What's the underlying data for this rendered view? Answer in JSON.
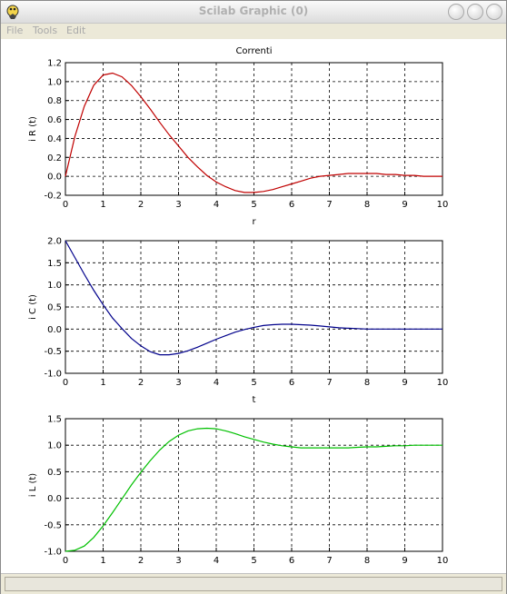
{
  "window": {
    "title": "Scilab Graphic (0)"
  },
  "menu": [
    "File",
    "Tools",
    "Edit"
  ],
  "chart_data": [
    {
      "type": "line",
      "title": "Correnti",
      "xlabel": "r",
      "ylabel": "i R (t)",
      "xlim": [
        0,
        10
      ],
      "ylim": [
        -0.2,
        1.2
      ],
      "xticks": [
        "0",
        "1",
        "2",
        "3",
        "4",
        "5",
        "6",
        "7",
        "8",
        "9",
        "10"
      ],
      "yticks": [
        "-0.2",
        "0.0",
        "0.2",
        "0.4",
        "0.6",
        "0.8",
        "1.0",
        "1.2"
      ],
      "grid": true,
      "color": "#c00000",
      "series": [
        {
          "x": [
            0,
            0.25,
            0.5,
            0.75,
            1,
            1.25,
            1.5,
            1.75,
            2,
            2.25,
            2.5,
            2.75,
            3,
            3.25,
            3.5,
            3.75,
            4,
            4.25,
            4.5,
            4.75,
            5,
            5.25,
            5.5,
            5.75,
            6,
            6.25,
            6.5,
            6.75,
            7,
            7.25,
            7.5,
            7.75,
            8,
            8.25,
            8.5,
            8.75,
            9,
            9.25,
            9.5,
            9.75,
            10
          ],
          "y": [
            0,
            0.42,
            0.74,
            0.96,
            1.07,
            1.09,
            1.05,
            0.96,
            0.84,
            0.71,
            0.57,
            0.44,
            0.32,
            0.2,
            0.1,
            0.01,
            -0.06,
            -0.11,
            -0.15,
            -0.17,
            -0.17,
            -0.16,
            -0.14,
            -0.11,
            -0.08,
            -0.05,
            -0.02,
            0,
            0.01,
            0.02,
            0.03,
            0.03,
            0.03,
            0.03,
            0.02,
            0.02,
            0.01,
            0.01,
            0,
            0,
            0
          ]
        }
      ]
    },
    {
      "type": "line",
      "title": "",
      "xlabel": "t",
      "ylabel": "i C (t)",
      "xlim": [
        0,
        10
      ],
      "ylim": [
        -1.0,
        2.0
      ],
      "xticks": [
        "0",
        "1",
        "2",
        "3",
        "4",
        "5",
        "6",
        "7",
        "8",
        "9",
        "10"
      ],
      "yticks": [
        "-1.0",
        "-0.5",
        "0.0",
        "0.5",
        "1.0",
        "1.5",
        "2.0"
      ],
      "grid": true,
      "color": "#00008b",
      "series": [
        {
          "x": [
            0,
            0.25,
            0.5,
            0.75,
            1,
            1.25,
            1.5,
            1.75,
            2,
            2.25,
            2.5,
            2.75,
            3,
            3.25,
            3.5,
            3.75,
            4,
            4.25,
            4.5,
            4.75,
            5,
            5.25,
            5.5,
            5.75,
            6,
            6.25,
            6.5,
            6.75,
            7,
            7.25,
            7.5,
            7.75,
            8,
            8.25,
            8.5,
            8.75,
            9,
            9.25,
            9.5,
            9.75,
            10
          ],
          "y": [
            2.0,
            1.62,
            1.24,
            0.88,
            0.55,
            0.25,
            0.01,
            -0.21,
            -0.38,
            -0.51,
            -0.58,
            -0.58,
            -0.55,
            -0.49,
            -0.41,
            -0.32,
            -0.23,
            -0.15,
            -0.07,
            -0.01,
            0.04,
            0.08,
            0.1,
            0.11,
            0.11,
            0.1,
            0.09,
            0.07,
            0.05,
            0.03,
            0.02,
            0.01,
            0,
            0,
            0,
            0,
            0,
            0,
            0,
            0,
            0
          ]
        }
      ]
    },
    {
      "type": "line",
      "title": "",
      "xlabel": "",
      "ylabel": "i L (t)",
      "xlim": [
        0,
        10
      ],
      "ylim": [
        -1.0,
        1.5
      ],
      "xticks": [
        "0",
        "1",
        "2",
        "3",
        "4",
        "5",
        "6",
        "7",
        "8",
        "9",
        "10"
      ],
      "yticks": [
        "-1.0",
        "-0.5",
        "0.0",
        "0.5",
        "1.0",
        "1.5"
      ],
      "grid": true,
      "color": "#00c000",
      "series": [
        {
          "x": [
            0,
            0.25,
            0.5,
            0.75,
            1,
            1.25,
            1.5,
            1.75,
            2,
            2.25,
            2.5,
            2.75,
            3,
            3.25,
            3.5,
            3.75,
            4,
            4.25,
            4.5,
            4.75,
            5,
            5.25,
            5.5,
            5.75,
            6,
            6.25,
            6.5,
            6.75,
            7,
            7.25,
            7.5,
            7.75,
            8,
            8.25,
            8.5,
            8.75,
            9,
            9.25,
            9.5,
            9.75,
            10
          ],
          "y": [
            -1.0,
            -0.98,
            -0.9,
            -0.74,
            -0.52,
            -0.27,
            -0.01,
            0.25,
            0.49,
            0.71,
            0.91,
            1.07,
            1.19,
            1.27,
            1.31,
            1.32,
            1.31,
            1.27,
            1.22,
            1.16,
            1.11,
            1.06,
            1.02,
            0.99,
            0.97,
            0.95,
            0.95,
            0.95,
            0.95,
            0.95,
            0.95,
            0.96,
            0.97,
            0.97,
            0.98,
            0.99,
            0.99,
            1.0,
            1.0,
            1.0,
            1.0
          ]
        }
      ]
    }
  ]
}
